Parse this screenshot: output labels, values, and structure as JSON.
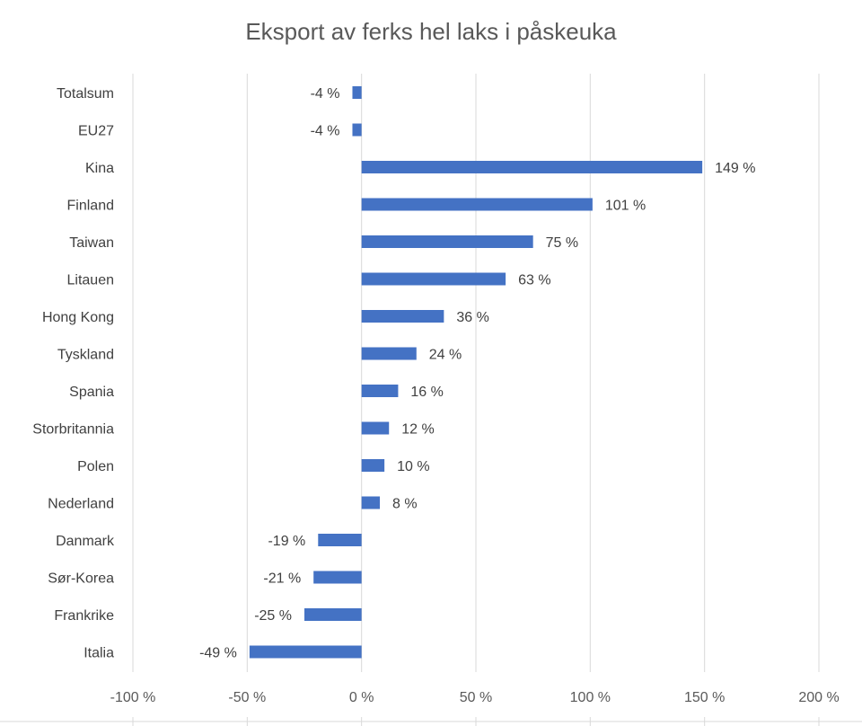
{
  "chart_data": {
    "type": "bar",
    "orientation": "horizontal",
    "title": "Eksport av ferks hel laks i påskeuka",
    "xlabel": "",
    "ylabel": "",
    "categories": [
      "Totalsum",
      "EU27",
      "Kina",
      "Finland",
      "Taiwan",
      "Litauen",
      "Hong Kong",
      "Tyskland",
      "Spania",
      "Storbritannia",
      "Polen",
      "Nederland",
      "Danmark",
      "Sør-Korea",
      "Frankrike",
      "Italia"
    ],
    "values": [
      -4,
      -4,
      149,
      101,
      75,
      63,
      36,
      24,
      16,
      12,
      10,
      8,
      -19,
      -21,
      -25,
      -49
    ],
    "data_labels": [
      "-4 %",
      "-4 %",
      "149 %",
      "101 %",
      "75 %",
      "63 %",
      "36 %",
      "24 %",
      "16 %",
      "12 %",
      "10 %",
      "8 %",
      "-19 %",
      "-21 %",
      "-25 %",
      "-49 %"
    ],
    "xlim": [
      -100,
      200
    ],
    "xticks": [
      -100,
      -50,
      0,
      50,
      100,
      150,
      200
    ],
    "xtick_labels": [
      "-100 %",
      "-50 %",
      "0 %",
      "50 %",
      "100 %",
      "150 %",
      "200 %"
    ],
    "grid": true,
    "legend": "none",
    "bar_color": "#4472C4"
  }
}
